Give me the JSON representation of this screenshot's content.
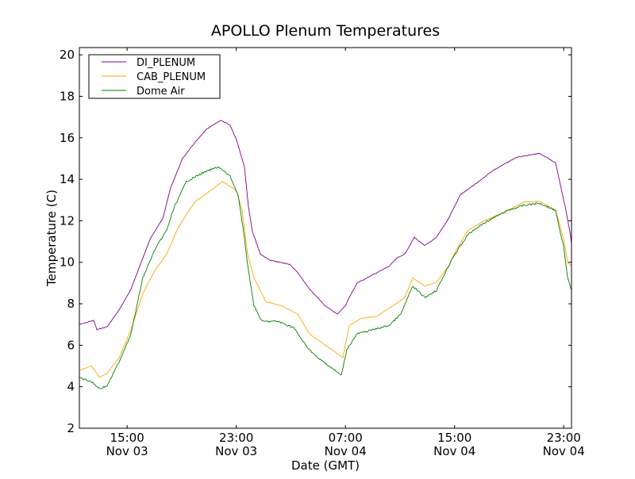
{
  "chart_data": {
    "type": "line",
    "title": "APOLLO Plenum Temperatures",
    "xlabel": "Date (GMT)",
    "ylabel": "Temperature (C)",
    "x_units": "hours since Nov 03 00:00 GMT",
    "xlim": [
      11.5,
      47.57
    ],
    "ylim": [
      2,
      20.35
    ],
    "grid": false,
    "legend_placement": "top-left",
    "xticks": [
      {
        "value": 15,
        "label": "15:00",
        "sublabel": "Nov 03"
      },
      {
        "value": 23,
        "label": "23:00",
        "sublabel": "Nov 03"
      },
      {
        "value": 31,
        "label": "07:00",
        "sublabel": "Nov 04"
      },
      {
        "value": 39,
        "label": "15:00",
        "sublabel": "Nov 04"
      },
      {
        "value": 47,
        "label": "23:00",
        "sublabel": "Nov 04"
      }
    ],
    "yticks": [
      2,
      4,
      6,
      8,
      10,
      12,
      14,
      16,
      18,
      20
    ],
    "series": [
      {
        "name": "DI_PLENUM",
        "color": "#800080",
        "x": [
          11.5,
          12.55,
          12.78,
          13.54,
          14.41,
          15.28,
          16.15,
          16.74,
          17.61,
          18.19,
          19.06,
          19.94,
          20.81,
          21.85,
          22.55,
          23.02,
          23.6,
          23.89,
          24.18,
          24.76,
          25.46,
          26.92,
          27.5,
          28.37,
          29.53,
          30.41,
          30.99,
          31.28,
          31.86,
          33.02,
          34.19,
          34.77,
          35.35,
          36.05,
          36.81,
          37.68,
          38.55,
          39.42,
          40.59,
          41.75,
          43.5,
          45.24,
          46.4,
          47.1,
          47.45,
          47.57
        ],
        "y": [
          7.0,
          7.2,
          6.75,
          6.9,
          7.7,
          8.7,
          10.2,
          11.2,
          12.1,
          13.6,
          15.0,
          15.75,
          16.4,
          16.85,
          16.6,
          15.9,
          14.6,
          12.7,
          11.5,
          10.4,
          10.1,
          9.9,
          9.5,
          8.7,
          7.9,
          7.5,
          7.9,
          8.3,
          9.0,
          9.4,
          9.8,
          10.2,
          10.4,
          11.2,
          10.8,
          11.2,
          12.1,
          13.25,
          13.8,
          14.4,
          15.05,
          15.25,
          14.8,
          12.7,
          11.5,
          10.9
        ]
      },
      {
        "name": "CAB_PLENUM",
        "color": "#ffa500",
        "x": [
          11.5,
          12.37,
          13.0,
          13.54,
          14.41,
          15.28,
          16.15,
          17.03,
          17.9,
          18.77,
          19.94,
          21.1,
          21.97,
          22.55,
          23.02,
          23.43,
          23.83,
          24.3,
          25.17,
          26.33,
          27.5,
          28.37,
          29.53,
          30.41,
          30.81,
          31.28,
          32.15,
          33.31,
          34.48,
          35.35,
          35.93,
          36.81,
          37.68,
          38.55,
          39.13,
          40.0,
          41.17,
          42.91,
          44.08,
          45.24,
          46.4,
          46.99,
          47.28,
          47.57
        ],
        "y": [
          4.8,
          5.0,
          4.45,
          4.65,
          5.4,
          6.75,
          8.5,
          9.6,
          10.4,
          11.7,
          12.9,
          13.45,
          13.9,
          13.65,
          13.45,
          12.5,
          10.4,
          9.25,
          8.1,
          7.9,
          7.5,
          6.55,
          6.0,
          5.6,
          5.4,
          6.95,
          7.3,
          7.4,
          7.9,
          8.3,
          9.25,
          8.85,
          9.05,
          9.8,
          10.6,
          11.55,
          12.0,
          12.5,
          12.9,
          12.95,
          12.5,
          11.15,
          10.0,
          9.8
        ]
      },
      {
        "name": "Dome Air",
        "color": "#008000",
        "x": [
          11.5,
          12.37,
          13.0,
          13.54,
          14.41,
          15.28,
          16.15,
          17.03,
          17.9,
          18.48,
          19.35,
          20.52,
          21.68,
          22.55,
          23.13,
          23.6,
          23.89,
          24.3,
          24.88,
          26.04,
          27.21,
          28.08,
          28.95,
          29.82,
          30.7,
          31.1,
          31.86,
          33.02,
          34.19,
          35.06,
          35.93,
          36.81,
          37.68,
          38.84,
          40.0,
          41.17,
          42.91,
          44.08,
          45.24,
          46.4,
          46.99,
          47.28,
          47.57
        ],
        "y": [
          4.45,
          4.25,
          3.9,
          4.05,
          5.2,
          6.55,
          9.25,
          10.6,
          11.55,
          12.7,
          13.9,
          14.3,
          14.6,
          14.15,
          13.25,
          11.15,
          9.6,
          7.9,
          7.15,
          7.15,
          6.85,
          6.0,
          5.4,
          5.0,
          4.55,
          5.8,
          6.55,
          6.75,
          6.95,
          7.5,
          8.85,
          8.3,
          8.65,
          10.2,
          11.35,
          11.9,
          12.5,
          12.75,
          12.85,
          12.5,
          10.75,
          9.25,
          8.65
        ]
      }
    ]
  }
}
